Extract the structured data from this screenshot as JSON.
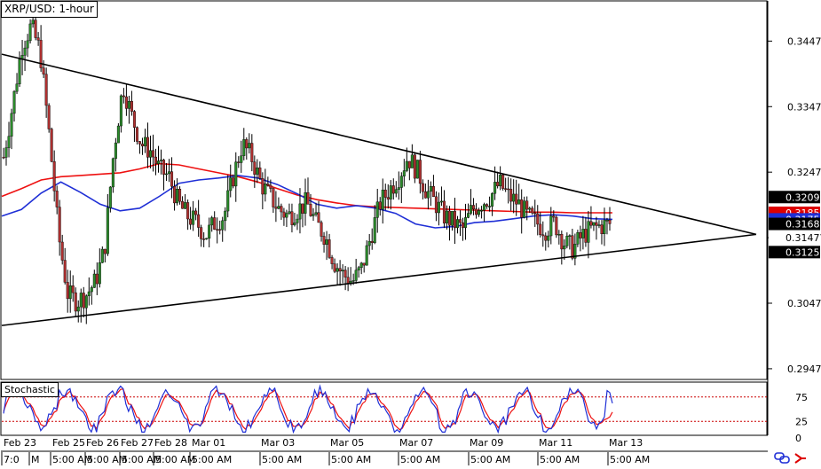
{
  "window_title": "XRP/USD: 1-hour",
  "indicator_title": "Stochastic",
  "colors": {
    "candle_up": "#2a8a2a",
    "candle_down": "#b03030",
    "candle_wick": "#000000",
    "ma_fast": "#1f2fd6",
    "ma_slow": "#ee1111",
    "trendline": "#000000",
    "stoch_main": "#1f2fd6",
    "stoch_signal": "#ee1111",
    "level_line": "#cc0000",
    "badge_black": "#000000",
    "badge_red": "#dd0000",
    "badge_blue": "#1f2fd6"
  },
  "price_axis": {
    "ticks": [
      "0.3447",
      "0.3347",
      "0.3247",
      "0.3147",
      "0.3047",
      "0.2947"
    ],
    "badges": [
      {
        "label": "0.3209",
        "color": "black"
      },
      {
        "label": "0.3185",
        "color": "red"
      },
      {
        "label": "0.3175",
        "color": "blue"
      },
      {
        "label": "0.3168",
        "color": "black"
      },
      {
        "label": "0.3147",
        "color": "none"
      },
      {
        "label": "0.3125",
        "color": "black"
      }
    ]
  },
  "stochastic_axis": {
    "ticks": [
      "75",
      "25",
      "0"
    ]
  },
  "date_labels": [
    "Feb 23",
    "Feb 25",
    "Feb 26",
    "Feb 27",
    "Feb 28",
    "Mar 01",
    "Mar 03",
    "Mar 05",
    "Mar 07",
    "Mar 09",
    "Mar 11",
    "Mar 13"
  ],
  "time_labels": [
    "7:0",
    "M",
    "5:00 AM",
    "5:00 AM",
    "5:00 AM",
    "5:00 AM",
    "5:00 AM",
    "5:00 AM",
    "5:00 AM",
    "5:00 AM",
    "5:00 AM",
    "5:00 AM",
    "5:00 AM"
  ],
  "toolbar_icons": [
    "link-icon",
    "arrow-icon"
  ],
  "chart_data": {
    "type": "candlestick",
    "title": "XRP/USD: 1-hour",
    "y_range": [
      0.2932,
      0.3507
    ],
    "close_path": [
      [
        0.327,
        0.335,
        0.344,
        0.347,
        0.343,
        0.33,
        0.315,
        0.306,
        0.305,
        0.306,
        0.308,
        0.313,
        0.328,
        0.338,
        0.333,
        0.329,
        0.328,
        0.325,
        0.324,
        0.32,
        0.318,
        0.317,
        0.315,
        0.317,
        0.318,
        0.324,
        0.329,
        0.327,
        0.323,
        0.321,
        0.319,
        0.318,
        0.319,
        0.32,
        0.317,
        0.315,
        0.311,
        0.309,
        0.308,
        0.31,
        0.315,
        0.32,
        0.322,
        0.324,
        0.327,
        0.325,
        0.322,
        0.32,
        0.318,
        0.317,
        0.316,
        0.319,
        0.32,
        0.321,
        0.323,
        0.321,
        0.32,
        0.318,
        0.317,
        0.316,
        0.317,
        0.314,
        0.313,
        0.315,
        0.316,
        0.3165,
        0.3168
      ]
    ],
    "ma_fast_path": [
      0.318,
      0.319,
      0.3215,
      0.3232,
      0.3216,
      0.3198,
      0.3188,
      0.3192,
      0.321,
      0.323,
      0.3235,
      0.3238,
      0.3242,
      0.3238,
      0.3228,
      0.3214,
      0.3198,
      0.3192,
      0.3196,
      0.3192,
      0.3184,
      0.3168,
      0.3162,
      0.3164,
      0.317,
      0.3172,
      0.3176,
      0.318,
      0.3182,
      0.318,
      0.3176,
      0.3175
    ],
    "ma_slow_path": [
      0.321,
      0.3222,
      0.3235,
      0.324,
      0.3242,
      0.3244,
      0.3246,
      0.3252,
      0.326,
      0.3258,
      0.3252,
      0.3246,
      0.324,
      0.3232,
      0.3222,
      0.3212,
      0.3205,
      0.32,
      0.3196,
      0.3194,
      0.3193,
      0.3192,
      0.3191,
      0.319,
      0.3189,
      0.3188,
      0.3187,
      0.3186,
      0.3186,
      0.3185,
      0.3185,
      0.3185
    ],
    "trendlines": [
      {
        "name": "upper",
        "from": [
          0,
          0.3427
        ],
        "to": [
          1,
          0.3152
        ]
      },
      {
        "name": "lower",
        "from": [
          0,
          0.3013
        ],
        "to": [
          1,
          0.3152
        ]
      }
    ],
    "stochastic": {
      "levels": [
        75,
        25
      ],
      "y_range": [
        0,
        100
      ]
    }
  }
}
